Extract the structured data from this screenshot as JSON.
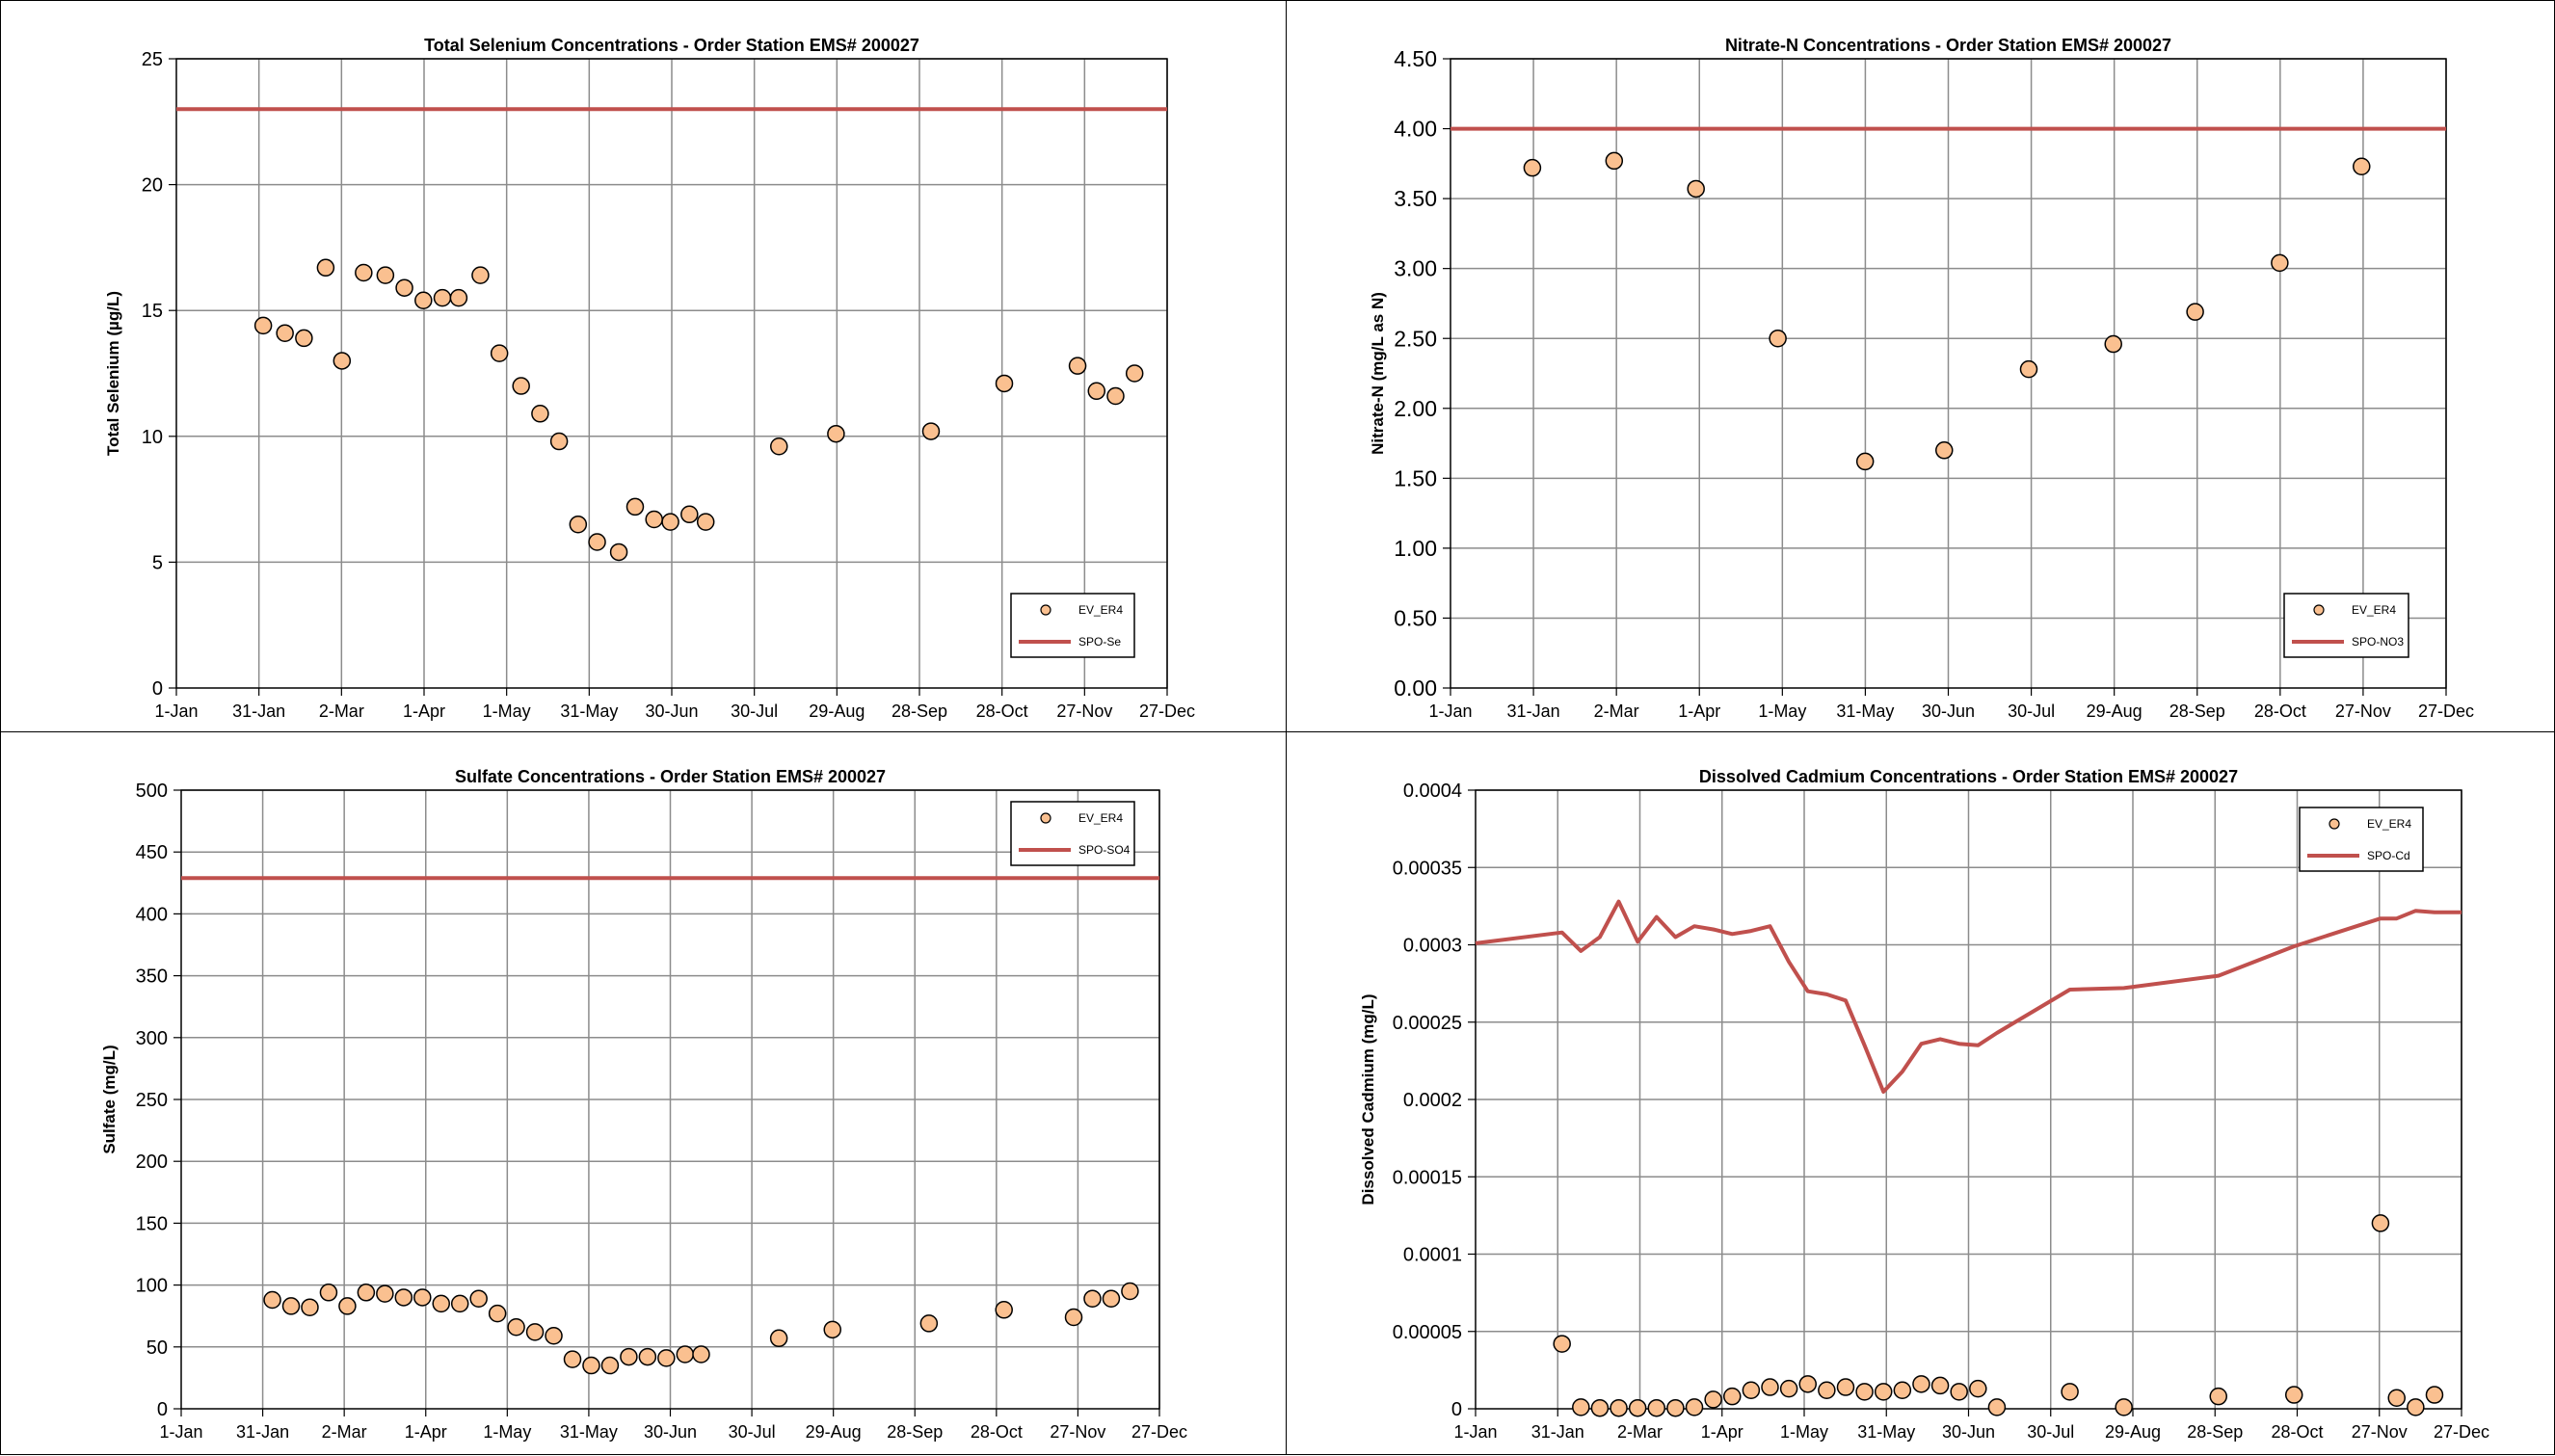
{
  "chart_data": [
    {
      "type": "scatter",
      "title": "Total Selenium Concentrations - Order Station EMS# 200027",
      "xlabel": "",
      "ylabel": "Total Selenium (µg/L)",
      "x_ticks": [
        "1-Jan",
        "31-Jan",
        "2-Mar",
        "1-Apr",
        "1-May",
        "31-May",
        "30-Jun",
        "30-Jul",
        "29-Aug",
        "28-Sep",
        "28-Oct",
        "27-Nov",
        "27-Dec"
      ],
      "ylim": [
        0,
        25
      ],
      "y_ticks": [
        0,
        5,
        10,
        15,
        20,
        25
      ],
      "y_ticks_display": [
        "0",
        "5",
        "10",
        "15",
        "20",
        "25"
      ],
      "grid": true,
      "legend": "bottom-right",
      "series": [
        {
          "name": "EV_ER4",
          "kind": "points",
          "color": "#fac090",
          "x": [
            "2024-02-02",
            "2024-02-10",
            "2024-02-17",
            "2024-02-25",
            "2024-03-02",
            "2024-03-10",
            "2024-03-18",
            "2024-03-25",
            "2024-04-01",
            "2024-04-08",
            "2024-04-14",
            "2024-04-22",
            "2024-04-29",
            "2024-05-07",
            "2024-05-14",
            "2024-05-21",
            "2024-05-28",
            "2024-06-04",
            "2024-06-12",
            "2024-06-18",
            "2024-06-25",
            "2024-07-01",
            "2024-07-08",
            "2024-07-14",
            "2024-08-10",
            "2024-08-31",
            "2024-10-05",
            "2024-11-01",
            "2024-11-28",
            "2024-12-05",
            "2024-12-12",
            "2024-12-19"
          ],
          "y": [
            14.4,
            14.1,
            13.9,
            16.7,
            13.0,
            16.5,
            16.4,
            15.9,
            15.4,
            15.5,
            15.5,
            16.4,
            13.3,
            12.0,
            10.9,
            9.8,
            6.5,
            5.8,
            5.4,
            7.2,
            6.7,
            6.6,
            6.9,
            6.6,
            9.6,
            10.1,
            10.2,
            12.1,
            12.8,
            11.8,
            11.6,
            12.5
          ]
        },
        {
          "name": "SPO-Se",
          "kind": "line",
          "color": "#c0504d",
          "x": [
            "2024-01-01",
            "2024-12-31"
          ],
          "y": [
            23,
            23
          ]
        }
      ]
    },
    {
      "type": "scatter",
      "title": "Nitrate-N Concentrations - Order Station EMS# 200027",
      "xlabel": "",
      "ylabel": "Nitrate-N (mg/L as N)",
      "x_ticks": [
        "1-Jan",
        "31-Jan",
        "2-Mar",
        "1-Apr",
        "1-May",
        "31-May",
        "30-Jun",
        "30-Jul",
        "29-Aug",
        "28-Sep",
        "28-Oct",
        "27-Nov",
        "27-Dec"
      ],
      "ylim": [
        0,
        4.5
      ],
      "y_ticks": [
        0,
        0.5,
        1,
        1.5,
        2,
        2.5,
        3,
        3.5,
        4,
        4.5
      ],
      "y_ticks_display": [
        "0.00",
        "0.50",
        "1.00",
        "1.50",
        "2.00",
        "2.50",
        "3.00",
        "3.50",
        "4.00",
        "4.50"
      ],
      "grid": true,
      "legend": "bottom-right",
      "series": [
        {
          "name": "EV_ER4",
          "kind": "points",
          "color": "#fac090",
          "x": [
            "2024-01-31",
            "2024-03-01",
            "2024-03-31",
            "2024-04-30",
            "2024-06-01",
            "2024-06-30",
            "2024-07-31",
            "2024-08-31",
            "2024-09-30",
            "2024-10-31",
            "2024-11-30"
          ],
          "y": [
            3.72,
            3.77,
            3.57,
            2.5,
            1.62,
            1.7,
            2.28,
            2.46,
            2.69,
            3.04,
            3.73
          ]
        },
        {
          "name": "SPO-NO3",
          "kind": "line",
          "color": "#c0504d",
          "x": [
            "2024-01-01",
            "2024-12-31"
          ],
          "y": [
            4,
            4
          ]
        }
      ]
    },
    {
      "type": "scatter",
      "title": "Sulfate Concentrations - Order Station EMS# 200027",
      "xlabel": "",
      "ylabel": "Sulfate (mg/L)",
      "x_ticks": [
        "1-Jan",
        "31-Jan",
        "2-Mar",
        "1-Apr",
        "1-May",
        "31-May",
        "30-Jun",
        "30-Jul",
        "29-Aug",
        "28-Sep",
        "28-Oct",
        "27-Nov",
        "27-Dec"
      ],
      "ylim": [
        0,
        500
      ],
      "y_ticks": [
        0,
        50,
        100,
        150,
        200,
        250,
        300,
        350,
        400,
        450,
        500
      ],
      "y_ticks_display": [
        "0",
        "50",
        "100",
        "150",
        "200",
        "250",
        "300",
        "350",
        "400",
        "450",
        "500"
      ],
      "grid": true,
      "legend": "top-right",
      "series": [
        {
          "name": "EV_ER4",
          "kind": "points",
          "color": "#fac090",
          "x": [
            "2024-02-04",
            "2024-02-11",
            "2024-02-18",
            "2024-02-25",
            "2024-03-03",
            "2024-03-10",
            "2024-03-17",
            "2024-03-24",
            "2024-03-31",
            "2024-04-07",
            "2024-04-14",
            "2024-04-21",
            "2024-04-28",
            "2024-05-05",
            "2024-05-12",
            "2024-05-19",
            "2024-05-26",
            "2024-06-02",
            "2024-06-09",
            "2024-06-16",
            "2024-06-23",
            "2024-06-30",
            "2024-07-07",
            "2024-07-13",
            "2024-08-11",
            "2024-08-31",
            "2024-10-06",
            "2024-11-03",
            "2024-11-29",
            "2024-12-06",
            "2024-12-13",
            "2024-12-20"
          ],
          "y": [
            88,
            83,
            82,
            94,
            83,
            94,
            93,
            90,
            90,
            85,
            85,
            89,
            77,
            66,
            62,
            59,
            40,
            35,
            35,
            42,
            42,
            41,
            44,
            44,
            57,
            64,
            69,
            80,
            74,
            89,
            89,
            95
          ]
        },
        {
          "name": "SPO-SO4",
          "kind": "line",
          "color": "#c0504d",
          "x": [
            "2024-01-01",
            "2024-12-31"
          ],
          "y": [
            429,
            429
          ]
        }
      ]
    },
    {
      "type": "scatter",
      "title": "Dissolved Cadmium Concentrations - Order Station EMS# 200027",
      "xlabel": "",
      "ylabel": "Dissolved Cadmium (mg/L)",
      "x_ticks": [
        "1-Jan",
        "31-Jan",
        "2-Mar",
        "1-Apr",
        "1-May",
        "31-May",
        "30-Jun",
        "30-Jul",
        "29-Aug",
        "28-Sep",
        "28-Oct",
        "27-Nov",
        "27-Dec"
      ],
      "ylim": [
        0,
        0.0004
      ],
      "y_ticks": [
        0,
        5e-05,
        0.0001,
        0.00015,
        0.0002,
        0.00025,
        0.0003,
        0.00035,
        0.0004
      ],
      "y_ticks_display": [
        "0",
        "0.00005",
        "0.0001",
        "0.00015",
        "0.0002",
        "0.00025",
        "0.0003",
        "0.00035",
        "0.0004"
      ],
      "grid": true,
      "legend": "top-right",
      "series": [
        {
          "name": "EV_ER4",
          "kind": "points",
          "color": "#fac090",
          "x": [
            "2024-02-02",
            "2024-02-09",
            "2024-02-16",
            "2024-02-23",
            "2024-03-01",
            "2024-03-08",
            "2024-03-15",
            "2024-03-22",
            "2024-03-29",
            "2024-04-05",
            "2024-04-12",
            "2024-04-19",
            "2024-04-26",
            "2024-05-03",
            "2024-05-10",
            "2024-05-17",
            "2024-05-24",
            "2024-05-31",
            "2024-06-07",
            "2024-06-14",
            "2024-06-21",
            "2024-06-28",
            "2024-07-05",
            "2024-07-12",
            "2024-08-08",
            "2024-08-28",
            "2024-10-02",
            "2024-10-30",
            "2024-12-01",
            "2024-12-07",
            "2024-12-14",
            "2024-12-21"
          ],
          "y": [
            4.2e-05,
            1e-06,
            5e-07,
            5e-07,
            5e-07,
            5e-07,
            5e-07,
            1e-06,
            6e-06,
            8e-06,
            1.2e-05,
            1.4e-05,
            1.3e-05,
            1.6e-05,
            1.2e-05,
            1.4e-05,
            1.1e-05,
            1.1e-05,
            1.2e-05,
            1.6e-05,
            1.5e-05,
            1.1e-05,
            1.3e-05,
            1e-06,
            1.1e-05,
            1e-06,
            8e-06,
            9e-06,
            0.00012,
            7e-06,
            1e-06,
            9e-06
          ]
        },
        {
          "name": "SPO-Cd",
          "kind": "line",
          "color": "#c0504d",
          "x": [
            "2024-01-01",
            "2024-02-02",
            "2024-02-09",
            "2024-02-16",
            "2024-02-23",
            "2024-03-01",
            "2024-03-08",
            "2024-03-15",
            "2024-03-22",
            "2024-03-29",
            "2024-04-05",
            "2024-04-12",
            "2024-04-19",
            "2024-04-26",
            "2024-05-03",
            "2024-05-10",
            "2024-05-17",
            "2024-05-24",
            "2024-05-31",
            "2024-06-07",
            "2024-06-14",
            "2024-06-21",
            "2024-06-28",
            "2024-07-05",
            "2024-07-12",
            "2024-08-08",
            "2024-08-28",
            "2024-10-02",
            "2024-10-30",
            "2024-12-01",
            "2024-12-07",
            "2024-12-14",
            "2024-12-21",
            "2024-12-31"
          ],
          "y": [
            0.000301,
            0.000308,
            0.000296,
            0.000305,
            0.000328,
            0.000302,
            0.000318,
            0.000305,
            0.000312,
            0.00031,
            0.000307,
            0.000309,
            0.000312,
            0.000289,
            0.00027,
            0.000268,
            0.000264,
            0.000235,
            0.000205,
            0.000218,
            0.000236,
            0.000239,
            0.000236,
            0.000235,
            0.000243,
            0.000271,
            0.000272,
            0.00028,
            0.000299,
            0.000317,
            0.000317,
            0.000322,
            0.000321,
            0.000321
          ]
        }
      ]
    }
  ]
}
